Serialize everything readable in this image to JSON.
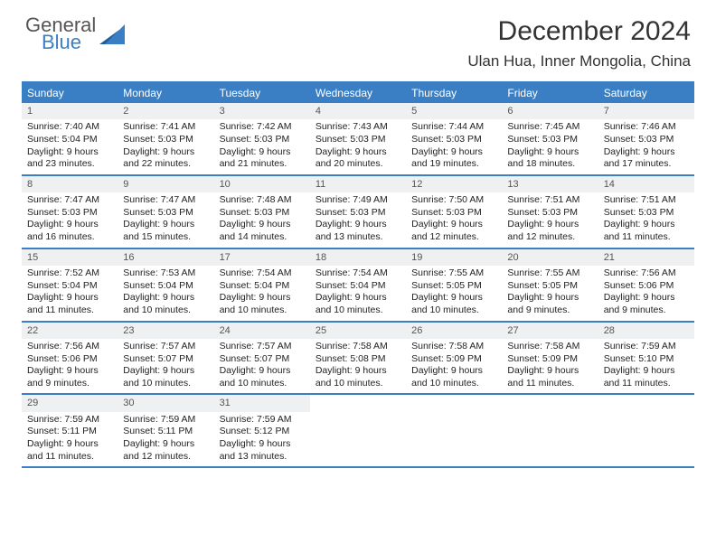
{
  "logo": {
    "line1": "General",
    "line2": "Blue"
  },
  "title": "December 2024",
  "location": "Ulan Hua, Inner Mongolia, China",
  "colors": {
    "accent": "#3a7fc4",
    "header_text": "#ffffff",
    "day_num_bg": "#eef0f2",
    "text": "#333333"
  },
  "day_names": [
    "Sunday",
    "Monday",
    "Tuesday",
    "Wednesday",
    "Thursday",
    "Friday",
    "Saturday"
  ],
  "weeks": [
    [
      {
        "n": "1",
        "sr": "7:40 AM",
        "ss": "5:04 PM",
        "dl": "9 hours and 23 minutes."
      },
      {
        "n": "2",
        "sr": "7:41 AM",
        "ss": "5:03 PM",
        "dl": "9 hours and 22 minutes."
      },
      {
        "n": "3",
        "sr": "7:42 AM",
        "ss": "5:03 PM",
        "dl": "9 hours and 21 minutes."
      },
      {
        "n": "4",
        "sr": "7:43 AM",
        "ss": "5:03 PM",
        "dl": "9 hours and 20 minutes."
      },
      {
        "n": "5",
        "sr": "7:44 AM",
        "ss": "5:03 PM",
        "dl": "9 hours and 19 minutes."
      },
      {
        "n": "6",
        "sr": "7:45 AM",
        "ss": "5:03 PM",
        "dl": "9 hours and 18 minutes."
      },
      {
        "n": "7",
        "sr": "7:46 AM",
        "ss": "5:03 PM",
        "dl": "9 hours and 17 minutes."
      }
    ],
    [
      {
        "n": "8",
        "sr": "7:47 AM",
        "ss": "5:03 PM",
        "dl": "9 hours and 16 minutes."
      },
      {
        "n": "9",
        "sr": "7:47 AM",
        "ss": "5:03 PM",
        "dl": "9 hours and 15 minutes."
      },
      {
        "n": "10",
        "sr": "7:48 AM",
        "ss": "5:03 PM",
        "dl": "9 hours and 14 minutes."
      },
      {
        "n": "11",
        "sr": "7:49 AM",
        "ss": "5:03 PM",
        "dl": "9 hours and 13 minutes."
      },
      {
        "n": "12",
        "sr": "7:50 AM",
        "ss": "5:03 PM",
        "dl": "9 hours and 12 minutes."
      },
      {
        "n": "13",
        "sr": "7:51 AM",
        "ss": "5:03 PM",
        "dl": "9 hours and 12 minutes."
      },
      {
        "n": "14",
        "sr": "7:51 AM",
        "ss": "5:03 PM",
        "dl": "9 hours and 11 minutes."
      }
    ],
    [
      {
        "n": "15",
        "sr": "7:52 AM",
        "ss": "5:04 PM",
        "dl": "9 hours and 11 minutes."
      },
      {
        "n": "16",
        "sr": "7:53 AM",
        "ss": "5:04 PM",
        "dl": "9 hours and 10 minutes."
      },
      {
        "n": "17",
        "sr": "7:54 AM",
        "ss": "5:04 PM",
        "dl": "9 hours and 10 minutes."
      },
      {
        "n": "18",
        "sr": "7:54 AM",
        "ss": "5:04 PM",
        "dl": "9 hours and 10 minutes."
      },
      {
        "n": "19",
        "sr": "7:55 AM",
        "ss": "5:05 PM",
        "dl": "9 hours and 10 minutes."
      },
      {
        "n": "20",
        "sr": "7:55 AM",
        "ss": "5:05 PM",
        "dl": "9 hours and 9 minutes."
      },
      {
        "n": "21",
        "sr": "7:56 AM",
        "ss": "5:06 PM",
        "dl": "9 hours and 9 minutes."
      }
    ],
    [
      {
        "n": "22",
        "sr": "7:56 AM",
        "ss": "5:06 PM",
        "dl": "9 hours and 9 minutes."
      },
      {
        "n": "23",
        "sr": "7:57 AM",
        "ss": "5:07 PM",
        "dl": "9 hours and 10 minutes."
      },
      {
        "n": "24",
        "sr": "7:57 AM",
        "ss": "5:07 PM",
        "dl": "9 hours and 10 minutes."
      },
      {
        "n": "25",
        "sr": "7:58 AM",
        "ss": "5:08 PM",
        "dl": "9 hours and 10 minutes."
      },
      {
        "n": "26",
        "sr": "7:58 AM",
        "ss": "5:09 PM",
        "dl": "9 hours and 10 minutes."
      },
      {
        "n": "27",
        "sr": "7:58 AM",
        "ss": "5:09 PM",
        "dl": "9 hours and 11 minutes."
      },
      {
        "n": "28",
        "sr": "7:59 AM",
        "ss": "5:10 PM",
        "dl": "9 hours and 11 minutes."
      }
    ],
    [
      {
        "n": "29",
        "sr": "7:59 AM",
        "ss": "5:11 PM",
        "dl": "9 hours and 11 minutes."
      },
      {
        "n": "30",
        "sr": "7:59 AM",
        "ss": "5:11 PM",
        "dl": "9 hours and 12 minutes."
      },
      {
        "n": "31",
        "sr": "7:59 AM",
        "ss": "5:12 PM",
        "dl": "9 hours and 13 minutes."
      },
      null,
      null,
      null,
      null
    ]
  ],
  "labels": {
    "sunrise": "Sunrise: ",
    "sunset": "Sunset: ",
    "daylight": "Daylight: "
  }
}
